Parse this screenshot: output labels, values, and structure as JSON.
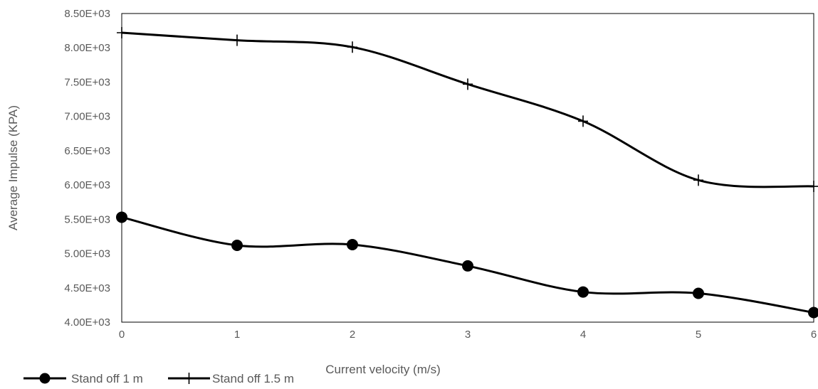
{
  "chart_data": {
    "type": "line",
    "x": [
      0,
      1,
      2,
      3,
      4,
      5,
      6
    ],
    "series": [
      {
        "name": "Stand off 1 m",
        "marker": "circle",
        "color": "#000000",
        "values": [
          5530,
          5120,
          5130,
          4820,
          4440,
          4420,
          4140
        ]
      },
      {
        "name": "Stand off 1.5 m",
        "marker": "plus",
        "color": "#000000",
        "values": [
          8220,
          8110,
          8010,
          7470,
          6930,
          6070,
          5980
        ]
      }
    ],
    "xlabel": "Current velocity (m/s)",
    "ylabel": "Average  Impulse  (KPA)",
    "xlim": [
      0,
      6
    ],
    "ylim": [
      4000,
      8500
    ],
    "x_ticks": [
      "0",
      "1",
      "2",
      "3",
      "4",
      "5",
      "6"
    ],
    "y_ticks": [
      "4.00E+03",
      "4.50E+03",
      "5.00E+03",
      "5.50E+03",
      "6.00E+03",
      "6.50E+03",
      "7.00E+03",
      "7.50E+03",
      "8.00E+03",
      "8.50E+03"
    ],
    "grid": false,
    "legend_position": "bottom-left"
  }
}
